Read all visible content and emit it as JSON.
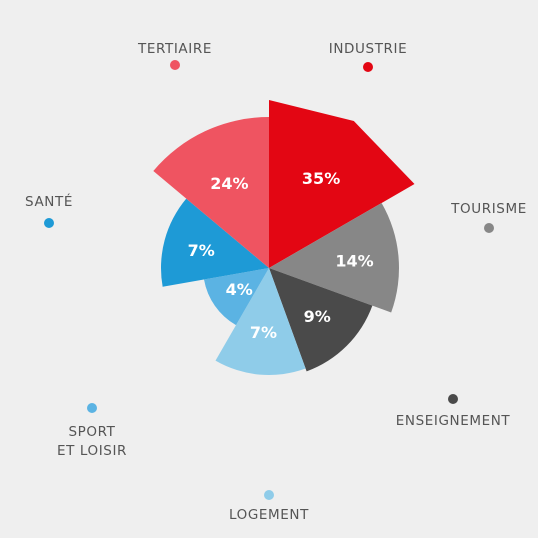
{
  "chart_data": {
    "type": "pie",
    "variant": "polar-area",
    "slices": [
      {
        "label": "INDUSTRIE",
        "value": 35,
        "value_label": "35%",
        "color": "#e30613"
      },
      {
        "label": "TOURISME",
        "value": 14,
        "value_label": "14%",
        "color": "#878787"
      },
      {
        "label": "ENSEIGNEMENT",
        "value": 9,
        "value_label": "9%",
        "color": "#4a4a4a"
      },
      {
        "label": "LOGEMENT",
        "value": 7,
        "value_label": "7%",
        "color": "#8fcce9"
      },
      {
        "label": "SPORT ET LOISIR",
        "label_lines": [
          "SPORT",
          "ET LOISIR"
        ],
        "value": 4,
        "value_label": "4%",
        "color": "#5bb3e3"
      },
      {
        "label": "SANTÉ",
        "value": 7,
        "value_label": "7%",
        "color": "#1e9ad6"
      },
      {
        "label": "TERTIAIRE",
        "value": 24,
        "value_label": "24%",
        "color": "#ef5461"
      }
    ],
    "legend": "dots around chart"
  }
}
